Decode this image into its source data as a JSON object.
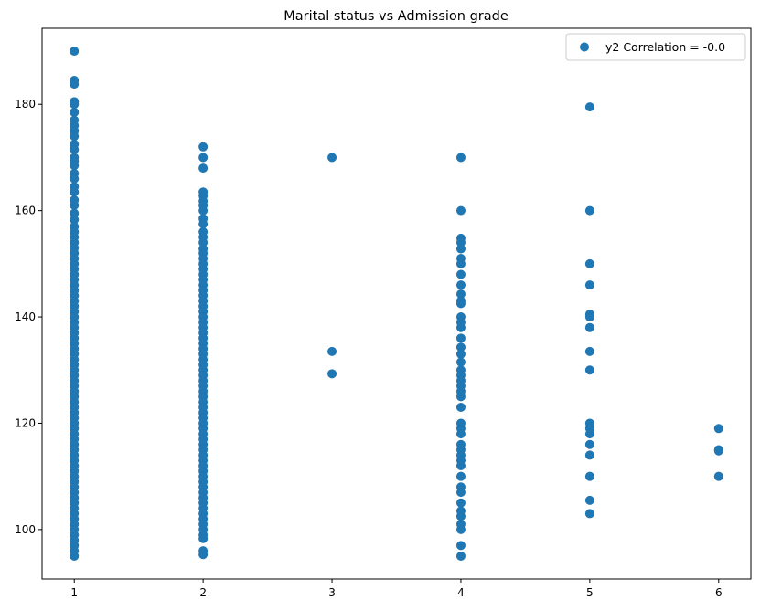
{
  "chart_data": {
    "type": "scatter",
    "title": "Marital status vs Admission grade",
    "xlabel": "",
    "ylabel": "",
    "xlim": [
      0.75,
      6.25
    ],
    "ylim": [
      90.7,
      194.3
    ],
    "x_ticks": [
      1,
      2,
      3,
      4,
      5,
      6
    ],
    "y_ticks": [
      100,
      120,
      140,
      160,
      180
    ],
    "grid": false,
    "legend_position": "top-right",
    "marker_color": "#1f77b4",
    "series": [
      {
        "name": "y2 Correlation = -0.0",
        "points": [
          [
            1,
            190
          ],
          [
            1,
            184.5
          ],
          [
            1,
            183.8
          ],
          [
            1,
            180.5
          ],
          [
            1,
            180
          ],
          [
            1,
            178.5
          ],
          [
            1,
            177
          ],
          [
            1,
            176
          ],
          [
            1,
            175
          ],
          [
            1,
            174
          ],
          [
            1,
            172.5
          ],
          [
            1,
            171.5
          ],
          [
            1,
            170
          ],
          [
            1,
            169.3
          ],
          [
            1,
            168.5
          ],
          [
            1,
            167
          ],
          [
            1,
            166
          ],
          [
            1,
            164.5
          ],
          [
            1,
            163.5
          ],
          [
            1,
            162
          ],
          [
            1,
            161
          ],
          [
            1,
            159.5
          ],
          [
            1,
            158.3
          ],
          [
            1,
            157
          ],
          [
            1,
            156
          ],
          [
            1,
            155
          ],
          [
            1,
            154
          ],
          [
            1,
            153
          ],
          [
            1,
            152
          ],
          [
            1,
            151
          ],
          [
            1,
            150
          ],
          [
            1,
            149
          ],
          [
            1,
            148
          ],
          [
            1,
            147
          ],
          [
            1,
            146
          ],
          [
            1,
            145
          ],
          [
            1,
            144
          ],
          [
            1,
            143
          ],
          [
            1,
            142
          ],
          [
            1,
            141
          ],
          [
            1,
            140
          ],
          [
            1,
            139
          ],
          [
            1,
            138
          ],
          [
            1,
            137
          ],
          [
            1,
            136
          ],
          [
            1,
            135
          ],
          [
            1,
            134
          ],
          [
            1,
            133
          ],
          [
            1,
            132
          ],
          [
            1,
            131
          ],
          [
            1,
            130
          ],
          [
            1,
            129
          ],
          [
            1,
            128
          ],
          [
            1,
            127
          ],
          [
            1,
            126
          ],
          [
            1,
            125
          ],
          [
            1,
            124
          ],
          [
            1,
            123
          ],
          [
            1,
            122
          ],
          [
            1,
            121
          ],
          [
            1,
            120
          ],
          [
            1,
            119
          ],
          [
            1,
            118
          ],
          [
            1,
            117
          ],
          [
            1,
            116
          ],
          [
            1,
            115
          ],
          [
            1,
            114
          ],
          [
            1,
            113
          ],
          [
            1,
            112
          ],
          [
            1,
            111
          ],
          [
            1,
            110
          ],
          [
            1,
            109
          ],
          [
            1,
            108
          ],
          [
            1,
            107
          ],
          [
            1,
            106
          ],
          [
            1,
            105
          ],
          [
            1,
            104
          ],
          [
            1,
            103
          ],
          [
            1,
            102
          ],
          [
            1,
            101
          ],
          [
            1,
            100
          ],
          [
            1,
            99
          ],
          [
            1,
            98
          ],
          [
            1,
            97
          ],
          [
            1,
            96
          ],
          [
            1,
            95
          ],
          [
            2,
            172
          ],
          [
            2,
            170
          ],
          [
            2,
            168
          ],
          [
            2,
            163.5
          ],
          [
            2,
            162.8
          ],
          [
            2,
            161.8
          ],
          [
            2,
            161
          ],
          [
            2,
            160
          ],
          [
            2,
            158.5
          ],
          [
            2,
            157.5
          ],
          [
            2,
            156
          ],
          [
            2,
            155
          ],
          [
            2,
            154
          ],
          [
            2,
            152.8
          ],
          [
            2,
            152
          ],
          [
            2,
            151
          ],
          [
            2,
            150
          ],
          [
            2,
            149
          ],
          [
            2,
            148
          ],
          [
            2,
            147
          ],
          [
            2,
            146
          ],
          [
            2,
            145
          ],
          [
            2,
            144
          ],
          [
            2,
            143
          ],
          [
            2,
            142
          ],
          [
            2,
            141
          ],
          [
            2,
            140
          ],
          [
            2,
            139
          ],
          [
            2,
            138
          ],
          [
            2,
            137
          ],
          [
            2,
            136
          ],
          [
            2,
            135
          ],
          [
            2,
            134
          ],
          [
            2,
            133
          ],
          [
            2,
            132
          ],
          [
            2,
            131
          ],
          [
            2,
            130
          ],
          [
            2,
            129
          ],
          [
            2,
            128
          ],
          [
            2,
            127
          ],
          [
            2,
            126
          ],
          [
            2,
            125
          ],
          [
            2,
            124
          ],
          [
            2,
            123
          ],
          [
            2,
            122
          ],
          [
            2,
            121
          ],
          [
            2,
            120
          ],
          [
            2,
            119
          ],
          [
            2,
            118
          ],
          [
            2,
            117
          ],
          [
            2,
            116
          ],
          [
            2,
            115
          ],
          [
            2,
            114
          ],
          [
            2,
            113
          ],
          [
            2,
            112
          ],
          [
            2,
            111
          ],
          [
            2,
            110
          ],
          [
            2,
            109
          ],
          [
            2,
            108
          ],
          [
            2,
            107
          ],
          [
            2,
            106
          ],
          [
            2,
            105
          ],
          [
            2,
            104
          ],
          [
            2,
            103
          ],
          [
            2,
            102
          ],
          [
            2,
            101
          ],
          [
            2,
            100
          ],
          [
            2,
            99
          ],
          [
            2,
            98.3
          ],
          [
            2,
            96
          ],
          [
            2,
            95.3
          ],
          [
            3,
            170
          ],
          [
            3,
            133.5
          ],
          [
            3,
            129.3
          ],
          [
            4,
            170
          ],
          [
            4,
            160
          ],
          [
            4,
            154.8
          ],
          [
            4,
            154
          ],
          [
            4,
            152.8
          ],
          [
            4,
            151
          ],
          [
            4,
            150
          ],
          [
            4,
            148
          ],
          [
            4,
            146
          ],
          [
            4,
            144.3
          ],
          [
            4,
            143
          ],
          [
            4,
            142.5
          ],
          [
            4,
            140
          ],
          [
            4,
            139
          ],
          [
            4,
            138
          ],
          [
            4,
            136
          ],
          [
            4,
            134.3
          ],
          [
            4,
            133
          ],
          [
            4,
            131.5
          ],
          [
            4,
            130
          ],
          [
            4,
            129
          ],
          [
            4,
            128
          ],
          [
            4,
            127
          ],
          [
            4,
            126
          ],
          [
            4,
            125
          ],
          [
            4,
            123
          ],
          [
            4,
            120
          ],
          [
            4,
            119
          ],
          [
            4,
            118
          ],
          [
            4,
            116
          ],
          [
            4,
            115
          ],
          [
            4,
            114
          ],
          [
            4,
            113
          ],
          [
            4,
            112
          ],
          [
            4,
            110
          ],
          [
            4,
            108
          ],
          [
            4,
            107
          ],
          [
            4,
            105
          ],
          [
            4,
            103.5
          ],
          [
            4,
            102.5
          ],
          [
            4,
            101
          ],
          [
            4,
            100
          ],
          [
            4,
            97
          ],
          [
            4,
            95
          ],
          [
            5,
            179.5
          ],
          [
            5,
            160
          ],
          [
            5,
            150
          ],
          [
            5,
            146
          ],
          [
            5,
            140.5
          ],
          [
            5,
            140
          ],
          [
            5,
            138
          ],
          [
            5,
            133.5
          ],
          [
            5,
            130
          ],
          [
            5,
            120
          ],
          [
            5,
            119
          ],
          [
            5,
            118
          ],
          [
            5,
            116
          ],
          [
            5,
            114
          ],
          [
            5,
            110
          ],
          [
            5,
            105.5
          ],
          [
            5,
            103
          ],
          [
            6,
            119
          ],
          [
            6,
            115
          ],
          [
            6,
            114.8
          ],
          [
            6,
            110
          ]
        ]
      }
    ]
  }
}
